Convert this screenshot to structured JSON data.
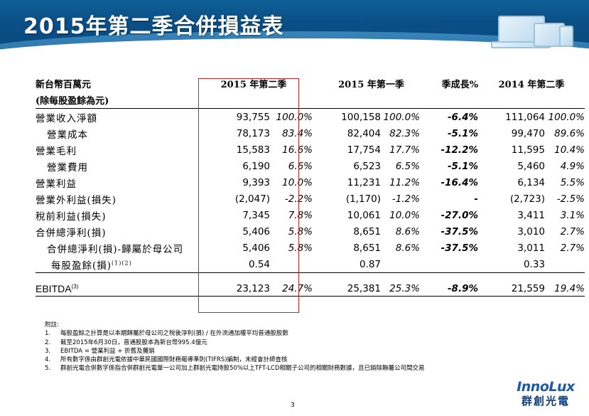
{
  "title": "2015年第二季合併損益表",
  "header": {
    "unit_line1": "新台幣百萬元",
    "unit_line2": "(除每股盈餘為元)",
    "col1": "2015 年第二季",
    "col2": "2015 年第一季",
    "col_growth": "季成長%",
    "col3": "2014 年第二季"
  },
  "rows": [
    {
      "label": "營業收入淨額",
      "v1": "93,755",
      "p1": "100.0%",
      "v2": "100,158",
      "p2": "100.0%",
      "g": "-6.4%",
      "v3": "111,064",
      "p3": "100.0%"
    },
    {
      "label": "營業成本",
      "v1": "78,173",
      "p1": "83.4%",
      "v2": "82,404",
      "p2": "82.3%",
      "g": "-5.1%",
      "v3": "99,470",
      "p3": "89.6%"
    },
    {
      "label": "營業毛利",
      "v1": "15,583",
      "p1": "16.6%",
      "v2": "17,754",
      "p2": "17.7%",
      "g": "-12.2%",
      "v3": "11,595",
      "p3": "10.4%"
    },
    {
      "label": "營業費用",
      "v1": "6,190",
      "p1": "6.6%",
      "v2": "6,523",
      "p2": "6.5%",
      "g": "-5.1%",
      "v3": "5,460",
      "p3": "4.9%"
    },
    {
      "label": "營業利益",
      "v1": "9,393",
      "p1": "10.0%",
      "v2": "11,231",
      "p2": "11.2%",
      "g": "-16.4%",
      "v3": "6,134",
      "p3": "5.5%"
    },
    {
      "label": "營業外利益(損失)",
      "v1": "(2,047)",
      "p1": "-2.2%",
      "v2": "(1,170)",
      "p2": "-1.2%",
      "g": "-",
      "v3": "(2,723)",
      "p3": "-2.5%"
    },
    {
      "label": "稅前利益(損失)",
      "v1": "7,345",
      "p1": "7.8%",
      "v2": "10,061",
      "p2": "10.0%",
      "g": "-27.0%",
      "v3": "3,411",
      "p3": "3.1%"
    },
    {
      "label": "合併總淨利(損)",
      "v1": "5,406",
      "p1": "5.8%",
      "v2": "8,651",
      "p2": "8.6%",
      "g": "-37.5%",
      "v3": "3,010",
      "p3": "2.7%"
    },
    {
      "label": "合併總淨利(損)-歸屬於母公司",
      "v1": "5,406",
      "p1": "5.8%",
      "v2": "8,651",
      "p2": "8.6%",
      "g": "-37.5%",
      "v3": "3,011",
      "p3": "2.7%"
    },
    {
      "label": "每股盈餘(損)",
      "sup": "(1)(2)",
      "v1": "0.54",
      "v2": "0.87",
      "v3": "0.33"
    }
  ],
  "ebitda": {
    "label": "EBITDA",
    "sup": "(3)",
    "v1": "23,123",
    "p1": "24.7%",
    "v2": "25,381",
    "p2": "25.3%",
    "g": "-8.9%",
    "v3": "21,559",
    "p3": "19.4%"
  },
  "notes": {
    "title": "附註:",
    "items": [
      {
        "num": "1.",
        "text": "每股盈餘之計算是以本期歸屬於母公司之稅後淨利(損) / 在外流通加權平均普通股股數"
      },
      {
        "num": "2.",
        "text": "截至2015年6月30日，普通股股本為新台幣995.4億元"
      },
      {
        "num": "3.",
        "text": "EBITDA = 營業利益 + 折舊及攤銷"
      },
      {
        "num": "4.",
        "text": "所有數字係由群創光電依據中華民國國際財務報導準則(TIFRS)編制，未經會計師查核"
      },
      {
        "num": "5.",
        "text": "群創光電合併數字係指合併群創光電單一公司加上群創光電持股50%以上TFT-LCD相關子公司的相關財務數據，且已銷除聯屬公司間交易"
      }
    ]
  },
  "page_number": "3",
  "logo": {
    "en": "InnoLux",
    "zh": "群創光電"
  }
}
